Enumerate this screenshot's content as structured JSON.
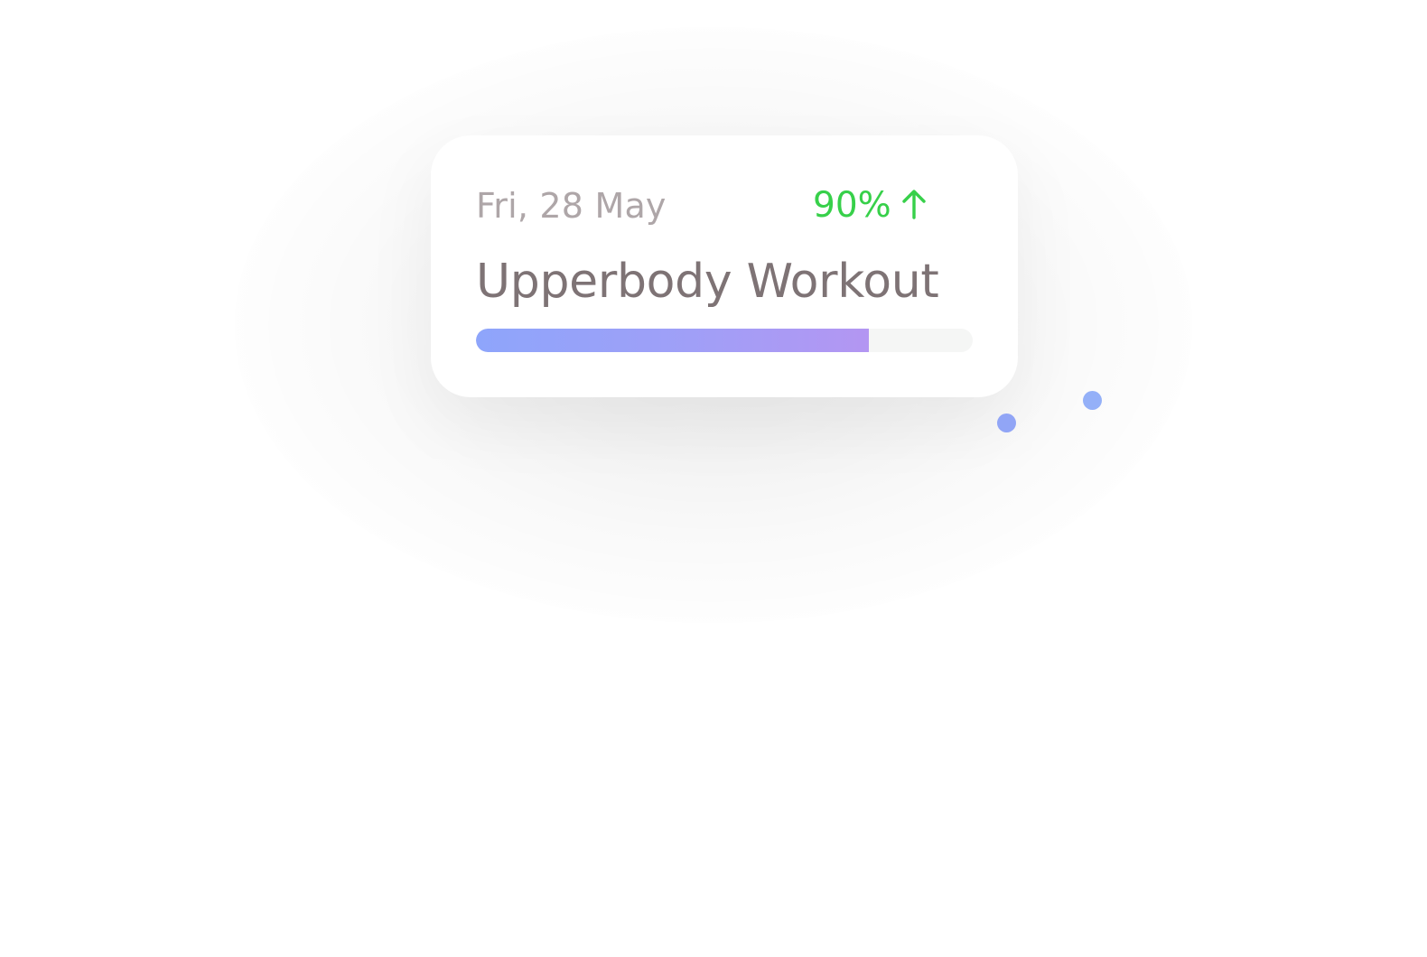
{
  "card": {
    "date": "Fri, 28 May",
    "percent": "90%",
    "trend_icon": "arrow-up-icon",
    "title": "Upperbody Workout",
    "progress": 0.79
  },
  "colors": {
    "percent": "#37d04a",
    "date_text": "#aea6a8",
    "title_text": "#7e7375",
    "progress_start": "#8ea5fb",
    "progress_end": "#b396f2",
    "progress_track": "#f5f6f5",
    "dot_primary": "#91a5f6",
    "dot_secondary": "#94b0f8"
  }
}
